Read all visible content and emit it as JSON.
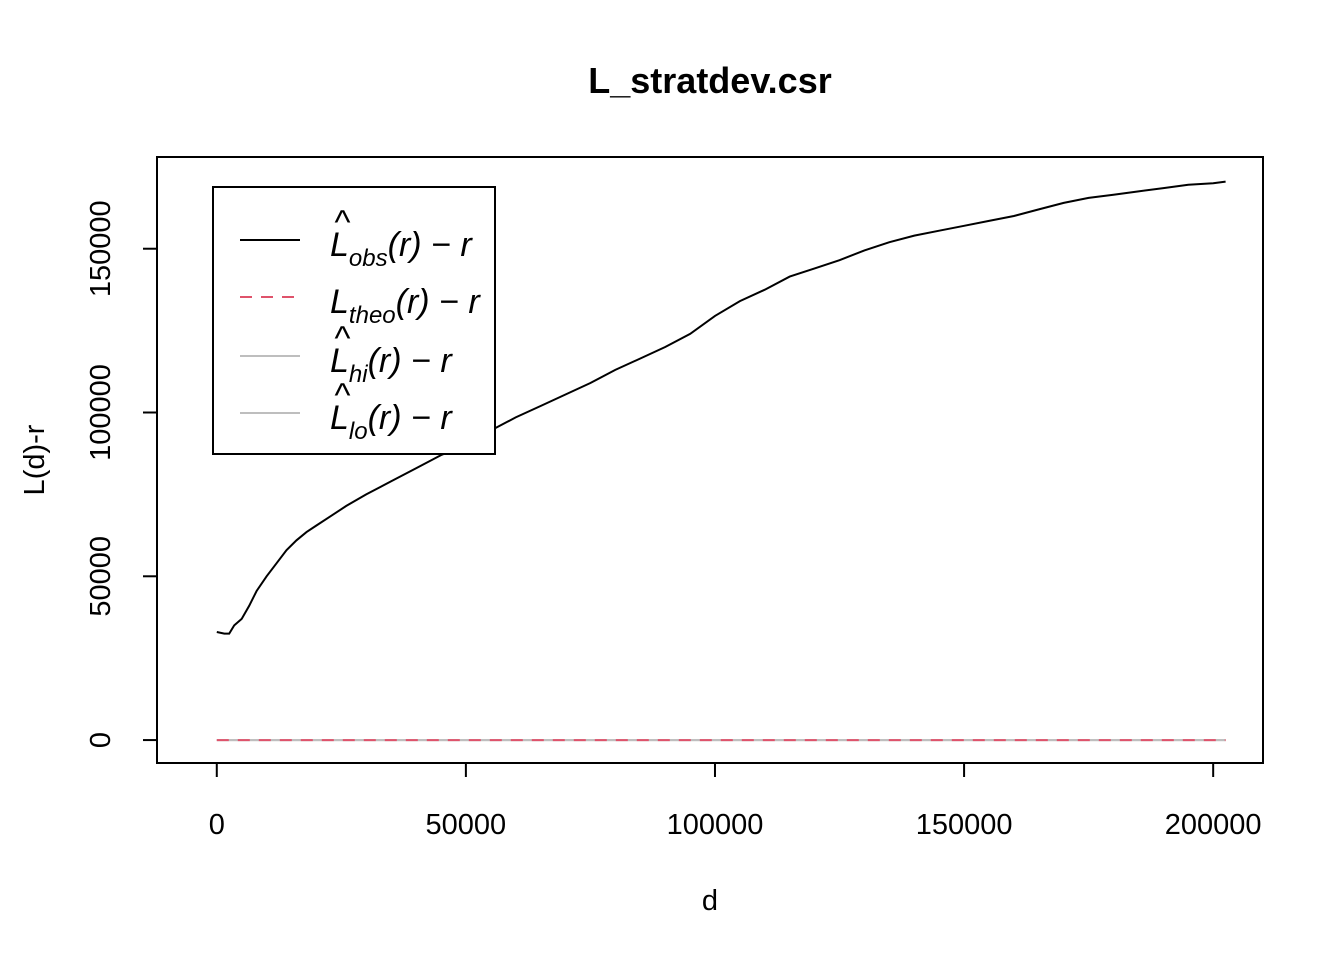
{
  "chart_data": {
    "type": "line",
    "title": "L_stratdev.csr",
    "xlabel": "d",
    "ylabel": "L(d)-r",
    "xlim": [
      -12000,
      210000
    ],
    "ylim": [
      -7000,
      178000
    ],
    "x_ticks": [
      0,
      50000,
      100000,
      150000,
      200000
    ],
    "x_tick_labels": [
      "0",
      "50000",
      "100000",
      "150000",
      "200000"
    ],
    "y_ticks": [
      0,
      50000,
      100000,
      150000
    ],
    "y_tick_labels": [
      "0",
      "50000",
      "100000",
      "150000"
    ],
    "grid": false,
    "legend_position": "top-left",
    "series": [
      {
        "name": "L̂obs(r) − r",
        "legend": {
          "base": "L",
          "hat": true,
          "sub": "obs",
          "suffix": "(r) − r"
        },
        "color": "#000000",
        "dash": "solid",
        "x": [
          0,
          1500,
          2500,
          3500,
          5000,
          6500,
          8000,
          10000,
          12000,
          14000,
          16000,
          18000,
          20000,
          23000,
          26000,
          30000,
          35000,
          40000,
          45000,
          50000,
          55000,
          60000,
          65000,
          70000,
          75000,
          80000,
          85000,
          90000,
          95000,
          100000,
          105000,
          110000,
          115000,
          120000,
          125000,
          130000,
          135000,
          140000,
          145000,
          150000,
          155000,
          160000,
          165000,
          170000,
          175000,
          180000,
          185000,
          190000,
          195000,
          200000,
          202500
        ],
        "y": [
          33000,
          32500,
          32500,
          35000,
          37000,
          41000,
          45500,
          50000,
          54000,
          58000,
          61000,
          63500,
          65500,
          68500,
          71500,
          75000,
          79000,
          83000,
          87000,
          90000,
          94500,
          98500,
          102000,
          105500,
          109000,
          113000,
          116500,
          120000,
          124000,
          129500,
          134000,
          137500,
          141500,
          144000,
          146500,
          149500,
          152000,
          154000,
          155500,
          157000,
          158500,
          160000,
          162000,
          164000,
          165500,
          166500,
          167500,
          168500,
          169500,
          170000,
          170500
        ]
      },
      {
        "name": "Ltheo(r) − r",
        "legend": {
          "base": "L",
          "hat": false,
          "sub": "theo",
          "suffix": "(r) − r"
        },
        "color": "#DF536B",
        "dash": "dashed",
        "x": [
          0,
          202500
        ],
        "y": [
          0,
          0
        ]
      },
      {
        "name": "L̂hi(r) − r",
        "legend": {
          "base": "L",
          "hat": true,
          "sub": "hi",
          "suffix": "(r) − r"
        },
        "color": "#BEBEBE",
        "dash": "solid",
        "x": [
          0,
          202500
        ],
        "y": [
          0,
          0
        ]
      },
      {
        "name": "L̂lo(r) − r",
        "legend": {
          "base": "L",
          "hat": true,
          "sub": "lo",
          "suffix": "(r) − r"
        },
        "color": "#BEBEBE",
        "dash": "solid",
        "x": [
          0,
          202500
        ],
        "y": [
          0,
          0
        ]
      }
    ]
  }
}
